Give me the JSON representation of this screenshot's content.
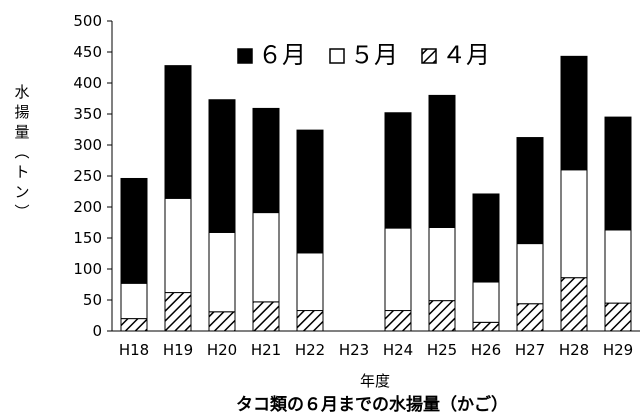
{
  "chart_data": {
    "type": "bar",
    "stacked": true,
    "title": "タコ類の６月までの水揚量（かご）",
    "xlabel": "年度",
    "ylabel": "水揚量（トン）",
    "ylim": [
      0,
      500
    ],
    "yticks": [
      0,
      50,
      100,
      150,
      200,
      250,
      300,
      350,
      400,
      450,
      500
    ],
    "grid": false,
    "legend_position": "top-right",
    "categories": [
      "H18",
      "H19",
      "H20",
      "H21",
      "H22",
      "H23",
      "H24",
      "H25",
      "H26",
      "H27",
      "H28",
      "H29"
    ],
    "series": [
      {
        "name": "４月",
        "fill": "hatch",
        "color": "#000000",
        "values": [
          20,
          62,
          31,
          47,
          33,
          0,
          33,
          49,
          14,
          44,
          86,
          45
        ]
      },
      {
        "name": "５月",
        "fill": "white",
        "color": "#ffffff",
        "values": [
          57,
          152,
          128,
          144,
          93,
          0,
          133,
          118,
          65,
          97,
          174,
          118
        ]
      },
      {
        "name": "６月",
        "fill": "black",
        "color": "#000000",
        "values": [
          169,
          214,
          214,
          168,
          198,
          0,
          186,
          213,
          142,
          171,
          183,
          182
        ]
      }
    ],
    "legend_order": [
      "６月",
      "５月",
      "４月"
    ]
  }
}
